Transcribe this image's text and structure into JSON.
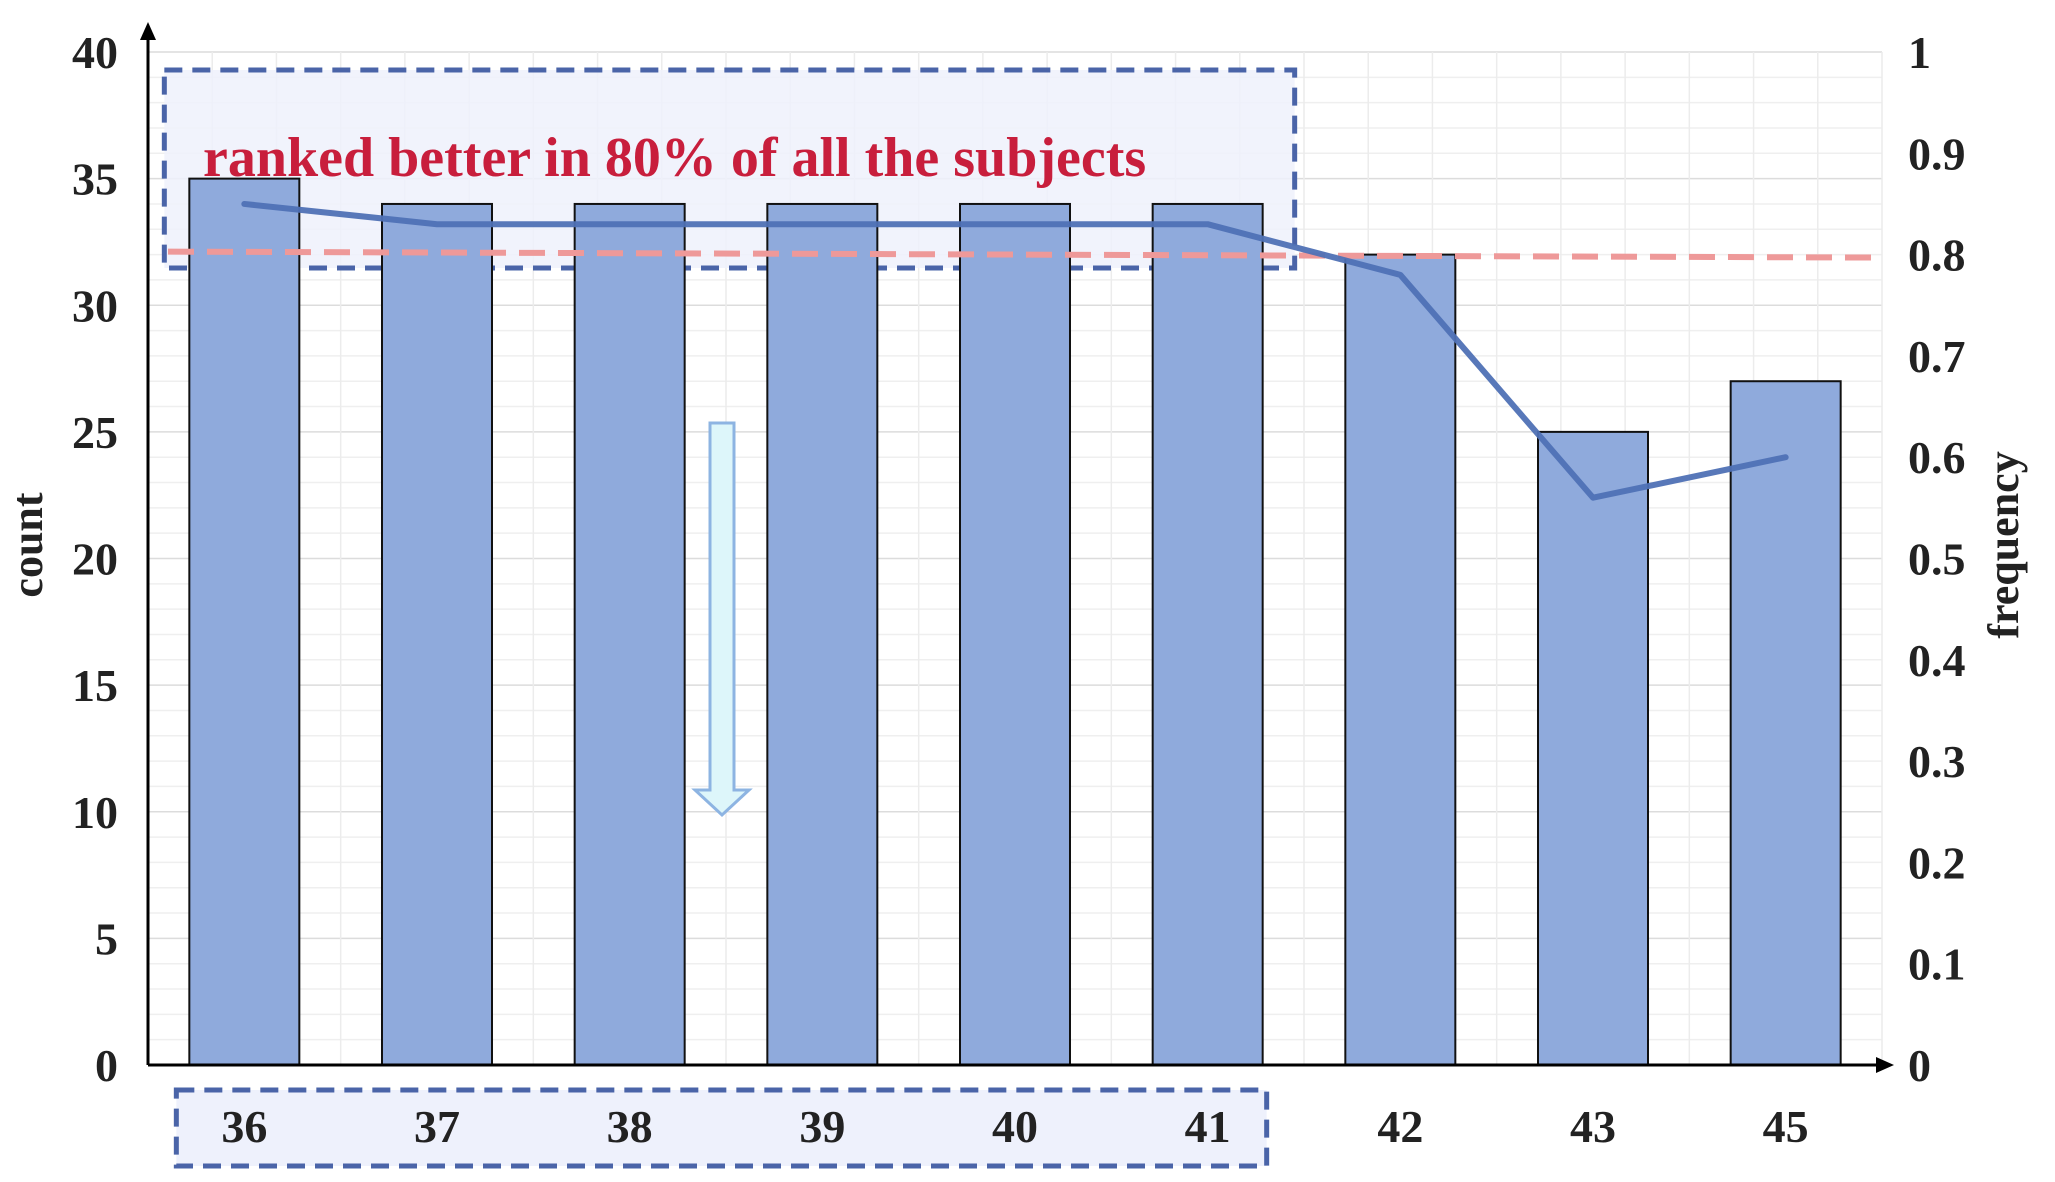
{
  "chart_data": {
    "type": "bar",
    "categories": [
      "36",
      "37",
      "38",
      "39",
      "40",
      "41",
      "42",
      "43",
      "45"
    ],
    "series": [
      {
        "type": "bar",
        "axis": "left",
        "values": [
          35,
          34,
          34,
          34,
          34,
          34,
          32,
          25,
          27
        ]
      },
      {
        "type": "line",
        "axis": "right",
        "values": [
          0.85,
          0.83,
          0.83,
          0.83,
          0.83,
          0.83,
          0.78,
          0.56,
          0.6
        ]
      }
    ],
    "threshold": {
      "axis": "right",
      "value": 0.8
    },
    "xlabel": "",
    "ylabel": "count",
    "y2label": "frequency",
    "ylim": [
      0,
      40
    ],
    "y2lim": [
      0,
      1
    ],
    "yticks": [
      "0",
      "5",
      "10",
      "15",
      "20",
      "25",
      "30",
      "35",
      "40"
    ],
    "y2ticks": [
      "0",
      "0.1",
      "0.2",
      "0.3",
      "0.4",
      "0.5",
      "0.6",
      "0.7",
      "0.8",
      "0.9",
      "1"
    ],
    "annotation": "ranked better in 80% of all the subjects",
    "highlighted_categories": [
      "36",
      "37",
      "38",
      "39",
      "40",
      "41"
    ],
    "grid": true,
    "colors": {
      "bar_fill": "#8faadc",
      "bar_stroke": "#111111",
      "line": "#4f71b5",
      "threshold": "#ee9999",
      "highlight_box": "#4a64a8",
      "highlight_fill": "#eef1fc",
      "annotation_text": "#c81e3c",
      "arrow_fill": "#ddf6fa",
      "arrow_stroke": "#8db4e2"
    }
  }
}
